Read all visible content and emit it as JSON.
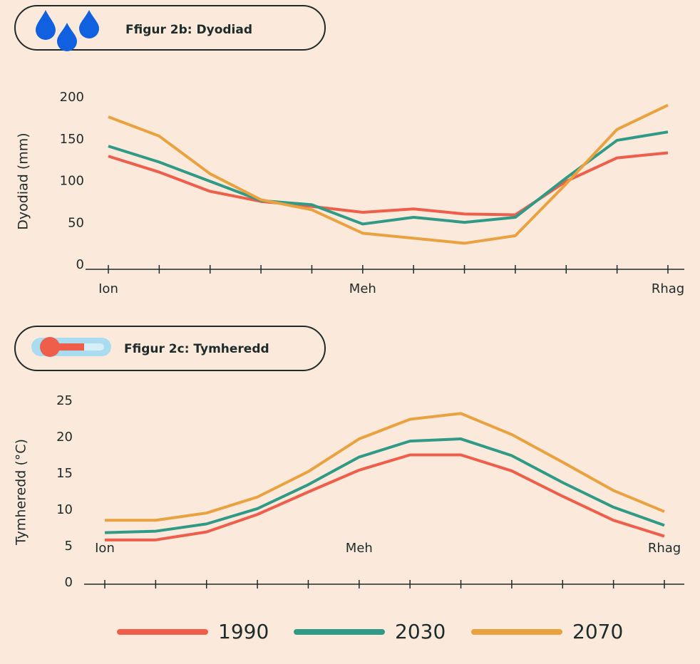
{
  "chart_data": [
    {
      "type": "line",
      "title": "Ffigur 2b: Dyodiad",
      "y_label": "Dyodiad (mm)",
      "categories": [
        "Ion",
        null,
        null,
        null,
        null,
        "Meh",
        null,
        null,
        null,
        null,
        null,
        "Rhag"
      ],
      "ylim": [
        0,
        200
      ],
      "yticks": [
        0,
        50,
        100,
        150,
        200
      ],
      "series": [
        {
          "color": "#ee5e4a",
          "values": [
            130,
            111,
            88,
            76,
            70,
            63,
            67,
            61,
            60,
            100,
            128,
            134
          ]
        },
        {
          "color": "#2f9a86",
          "values": [
            142,
            123,
            100,
            77,
            72,
            49,
            57,
            51,
            57,
            104,
            149,
            159
          ]
        },
        {
          "color": "#e9a23f",
          "values": [
            177,
            154,
            109,
            78,
            66,
            38,
            32,
            26,
            35,
            97,
            162,
            191
          ]
        }
      ]
    },
    {
      "type": "line",
      "title": "Ffigur 2c: Tymheredd",
      "y_label": "Tymheredd (°C)",
      "categories": [
        "Ion",
        null,
        null,
        null,
        null,
        "Meh",
        null,
        null,
        null,
        null,
        null,
        "Rhag"
      ],
      "ylim": [
        0,
        25
      ],
      "yticks": [
        0,
        5,
        10,
        15,
        20,
        25
      ],
      "series": [
        {
          "name": "1990",
          "color": "#ee5e4a",
          "values": [
            5.9,
            5.9,
            7.0,
            9.4,
            12.5,
            15.5,
            17.6,
            17.6,
            15.4,
            11.9,
            8.6,
            6.4
          ]
        },
        {
          "name": "2030",
          "color": "#2f9a86",
          "values": [
            6.9,
            7.1,
            8.1,
            10.2,
            13.5,
            17.3,
            19.5,
            19.8,
            17.5,
            13.8,
            10.4,
            7.9
          ]
        },
        {
          "name": "2070",
          "color": "#e9a23f",
          "values": [
            8.6,
            8.6,
            9.6,
            11.8,
            15.3,
            19.8,
            22.5,
            23.3,
            20.4,
            16.6,
            12.7,
            9.8
          ]
        }
      ]
    }
  ]
}
